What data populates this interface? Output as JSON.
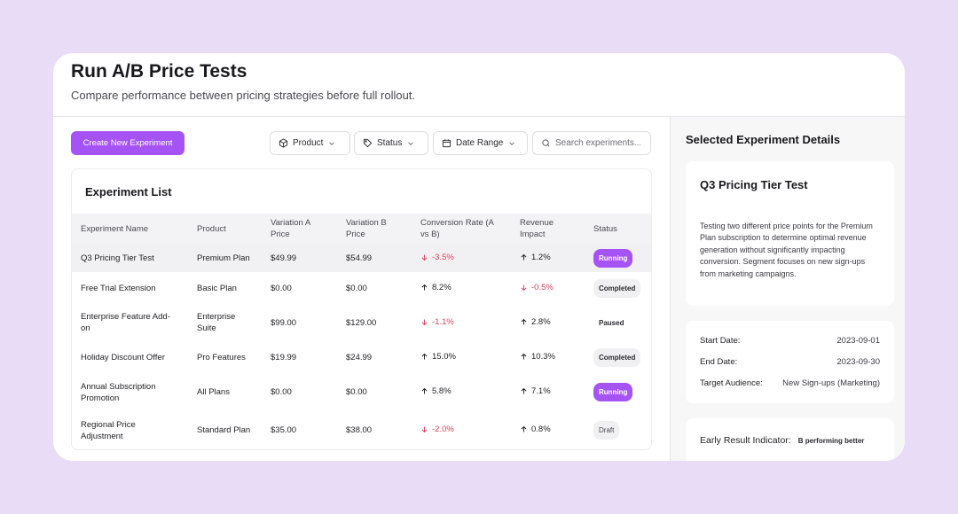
{
  "header": {
    "title": "Run A/B Price Tests",
    "subtitle": "Compare performance between pricing strategies before full rollout."
  },
  "toolbar": {
    "create_label": "Create New Experiment",
    "filters": {
      "product": "Product",
      "status": "Status",
      "date_range": "Date Range"
    },
    "search_placeholder": "Search experiments..."
  },
  "list": {
    "title": "Experiment List",
    "columns": [
      "Experiment Name",
      "Product",
      "Variation A Price",
      "Variation B Price",
      "Conversion Rate (A vs B)",
      "Revenue Impact",
      "Status"
    ],
    "rows": [
      {
        "name": "Q3 Pricing Tier Test",
        "product": "Premium Plan",
        "price_a": "$49.99",
        "price_b": "$54.99",
        "conversion": "-3.5%",
        "conversion_dir": "down",
        "revenue": "1.2%",
        "revenue_dir": "up",
        "status": "Running"
      },
      {
        "name": "Free Trial Extension",
        "product": "Basic Plan",
        "price_a": "$0.00",
        "price_b": "$0.00",
        "conversion": "8.2%",
        "conversion_dir": "up",
        "revenue": "-0.5%",
        "revenue_dir": "down",
        "status": "Completed"
      },
      {
        "name": "Enterprise Feature Add-on",
        "product": "Enterprise Suite",
        "price_a": "$99.00",
        "price_b": "$129.00",
        "conversion": "-1.1%",
        "conversion_dir": "down",
        "revenue": "2.8%",
        "revenue_dir": "up",
        "status": "Paused"
      },
      {
        "name": "Holiday Discount Offer",
        "product": "Pro Features",
        "price_a": "$19.99",
        "price_b": "$24.99",
        "conversion": "15.0%",
        "conversion_dir": "up",
        "revenue": "10.3%",
        "revenue_dir": "up",
        "status": "Completed"
      },
      {
        "name": "Annual Subscription Promotion",
        "product": "All Plans",
        "price_a": "$0.00",
        "price_b": "$0.00",
        "conversion": "5.8%",
        "conversion_dir": "up",
        "revenue": "7.1%",
        "revenue_dir": "up",
        "status": "Running"
      },
      {
        "name": "Regional Price Adjustment",
        "product": "Standard Plan",
        "price_a": "$35.00",
        "price_b": "$38.00",
        "conversion": "-2.0%",
        "conversion_dir": "down",
        "revenue": "0.8%",
        "revenue_dir": "up",
        "status": "Draft"
      }
    ]
  },
  "details": {
    "title": "Selected Experiment Details",
    "experiment_name": "Q3 Pricing Tier Test",
    "description": "Testing two different price points for the Premium Plan subscription to determine optimal revenue generation without significantly impacting conversion. Segment focuses on new sign-ups from marketing campaigns.",
    "start_label": "Start Date:",
    "start_value": "2023-09-01",
    "end_label": "End Date:",
    "end_value": "2023-09-30",
    "audience_label": "Target Audience:",
    "audience_value": "New Sign-ups (Marketing)",
    "indicator_label": "Early Result Indicator:",
    "indicator_value": "B performing better"
  },
  "colors": {
    "accent": "#a653f5",
    "negative": "#e03e5c",
    "background": "#e8dcf6"
  }
}
